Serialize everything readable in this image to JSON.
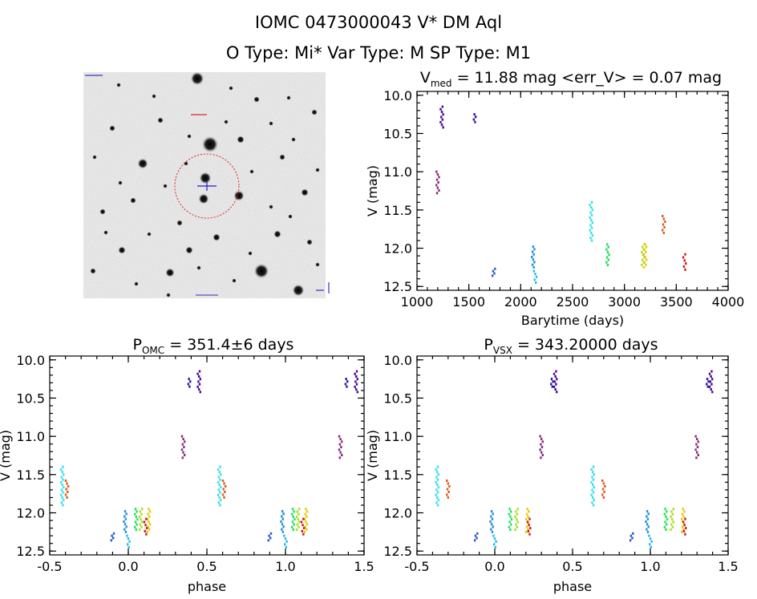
{
  "header": {
    "line1": "IOMC 0473000043    V* DM Aql",
    "line2": "O Type: Mi*  Var Type: M  SP Type: M1"
  },
  "image_panel": {
    "description_icon": "star-field-image"
  },
  "chart_data": [
    {
      "id": "lightcurve",
      "type": "scatter",
      "title_main": "V",
      "title_sub": "med",
      "title_rest": " = 11.88 mag <err_V> = 0.07 mag",
      "xlabel": "Barytime (days)",
      "ylabel": "V (mag)",
      "xlim": [
        1000,
        4000
      ],
      "ylim": [
        12.55,
        9.95
      ],
      "xticks": [
        1000,
        1500,
        2000,
        2500,
        3000,
        3500,
        4000
      ],
      "yticks": [
        10.0,
        10.5,
        11.0,
        11.5,
        12.0,
        12.5
      ],
      "series": [
        {
          "color": "#8b2b7e",
          "x": [
            1200
          ],
          "y_range": [
            11.0,
            11.28
          ]
        },
        {
          "color": "#4b0a9a",
          "x": [
            1240
          ],
          "y_range": [
            10.15,
            10.42
          ]
        },
        {
          "color": "#2a1aa0",
          "x": [
            1560
          ],
          "y_range": [
            10.25,
            10.35
          ]
        },
        {
          "color": "#2a5ad0",
          "x": [
            1740
          ],
          "y_range": [
            12.27,
            12.36
          ]
        },
        {
          "color": "#1e90e0",
          "x": [
            2120
          ],
          "y_range": [
            11.98,
            12.25
          ]
        },
        {
          "color": "#22bde8",
          "x": [
            2140
          ],
          "y_range": [
            12.3,
            12.45
          ]
        },
        {
          "color": "#38e0e8",
          "x": [
            2680
          ],
          "y_range": [
            11.4,
            11.9
          ]
        },
        {
          "color": "#22e060",
          "x": [
            2840
          ],
          "y_range": [
            11.95,
            12.22
          ]
        },
        {
          "color": "#a8e020",
          "x": [
            3180
          ],
          "y_range": [
            11.95,
            12.22
          ]
        },
        {
          "color": "#e8c800",
          "x": [
            3200
          ],
          "y_range": [
            11.95,
            12.25
          ]
        },
        {
          "color": "#e05a18",
          "x": [
            3380
          ],
          "y_range": [
            11.58,
            11.8
          ]
        },
        {
          "color": "#d01818",
          "x": [
            3580
          ],
          "y_range": [
            12.08,
            12.28
          ]
        }
      ]
    },
    {
      "id": "phase-omc",
      "type": "scatter",
      "title_main": "P",
      "title_sub": "OMC",
      "title_rest": " = 351.4±6 days",
      "xlabel": "phase",
      "ylabel": "V (mag)",
      "xlim": [
        -0.5,
        1.5
      ],
      "ylim": [
        12.55,
        9.95
      ],
      "xticks": [
        -0.5,
        0.0,
        0.5,
        1.0,
        1.5
      ],
      "yticks": [
        10.0,
        10.5,
        11.0,
        11.5,
        12.0,
        12.5
      ],
      "phase_points": [
        {
          "color": "#8b2b7e",
          "x": 0.35,
          "y_range": [
            11.0,
            11.28
          ]
        },
        {
          "color": "#4b0a9a",
          "x": 0.45,
          "y_range": [
            10.15,
            10.42
          ]
        },
        {
          "color": "#2a1aa0",
          "x": 0.39,
          "y_range": [
            10.25,
            10.35
          ]
        },
        {
          "color": "#2a5ad0",
          "x": -0.1,
          "y_range": [
            12.27,
            12.36
          ]
        },
        {
          "color": "#1e90e0",
          "x": -0.02,
          "y_range": [
            11.98,
            12.25
          ]
        },
        {
          "color": "#22bde8",
          "x": 0.0,
          "y_range": [
            12.3,
            12.45
          ]
        },
        {
          "color": "#38e0e8",
          "x": -0.42,
          "y_range": [
            11.4,
            11.9
          ]
        },
        {
          "color": "#22e060",
          "x": 0.05,
          "y_range": [
            11.95,
            12.22
          ]
        },
        {
          "color": "#a8e020",
          "x": 0.08,
          "y_range": [
            11.95,
            12.22
          ]
        },
        {
          "color": "#e8c800",
          "x": 0.13,
          "y_range": [
            11.95,
            12.25
          ]
        },
        {
          "color": "#e05a18",
          "x": -0.39,
          "y_range": [
            11.58,
            11.8
          ]
        },
        {
          "color": "#d01818",
          "x": 0.11,
          "y_range": [
            12.08,
            12.28
          ]
        }
      ]
    },
    {
      "id": "phase-vsx",
      "type": "scatter",
      "title_main": "P",
      "title_sub": "VSX",
      "title_rest": " = 343.20000 days",
      "xlabel": "phase",
      "ylabel": "V (mag)",
      "xlim": [
        -0.5,
        1.5
      ],
      "ylim": [
        12.55,
        9.95
      ],
      "xticks": [
        -0.5,
        0.0,
        0.5,
        1.0,
        1.5
      ],
      "yticks": [
        10.0,
        10.5,
        11.0,
        11.5,
        12.0,
        12.5
      ],
      "phase_points": [
        {
          "color": "#8b2b7e",
          "x": 0.3,
          "y_range": [
            11.0,
            11.28
          ]
        },
        {
          "color": "#4b0a9a",
          "x": 0.39,
          "y_range": [
            10.15,
            10.42
          ]
        },
        {
          "color": "#2a1aa0",
          "x": 0.37,
          "y_range": [
            10.25,
            10.35
          ]
        },
        {
          "color": "#2a5ad0",
          "x": -0.12,
          "y_range": [
            12.27,
            12.36
          ]
        },
        {
          "color": "#1e90e0",
          "x": -0.02,
          "y_range": [
            11.98,
            12.25
          ]
        },
        {
          "color": "#22bde8",
          "x": 0.0,
          "y_range": [
            12.3,
            12.45
          ]
        },
        {
          "color": "#38e0e8",
          "x": -0.37,
          "y_range": [
            11.4,
            11.9
          ]
        },
        {
          "color": "#22e060",
          "x": 0.1,
          "y_range": [
            11.95,
            12.22
          ]
        },
        {
          "color": "#a8e020",
          "x": 0.14,
          "y_range": [
            11.95,
            12.22
          ]
        },
        {
          "color": "#e8c800",
          "x": 0.21,
          "y_range": [
            11.95,
            12.25
          ]
        },
        {
          "color": "#e05a18",
          "x": -0.3,
          "y_range": [
            11.58,
            11.8
          ]
        },
        {
          "color": "#d01818",
          "x": 0.22,
          "y_range": [
            12.08,
            12.28
          ]
        }
      ]
    }
  ]
}
